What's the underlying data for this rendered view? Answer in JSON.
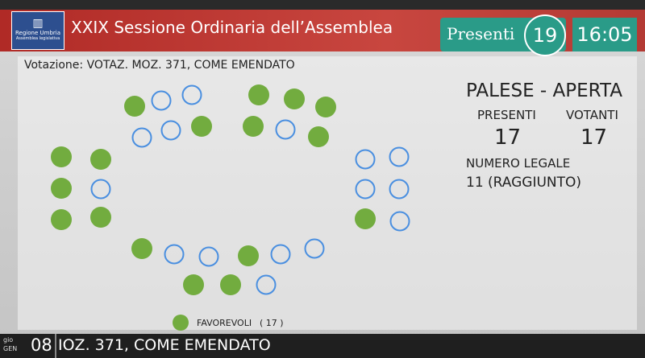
{
  "header": {
    "logo": [
      "Regione Umbria",
      "Assemblea legislativa"
    ],
    "title": "XXIX Sessione Ordinaria dell’Assemblea",
    "presenti_label": "Presenti",
    "presenti_value": "19",
    "clock": "16:05"
  },
  "vote": {
    "subject": "Votazione: VOTAZ. MOZ. 371, COME EMENDATO",
    "mode": "PALESE - APERTA",
    "presenti_label": "PRESENTI",
    "votanti_label": "VOTANTI",
    "presenti": "17",
    "votanti": "17",
    "legal_label": "NUMERO LEGALE",
    "legal_value": "11 (RAGGIUNTO)"
  },
  "legend": {
    "label": "FAVOREVOLI",
    "count": "( 17 )"
  },
  "ticker": {
    "day": "gio",
    "month": "GEN",
    "date": "08",
    "text": "IOZ. 371, COME EMENDATO"
  }
}
